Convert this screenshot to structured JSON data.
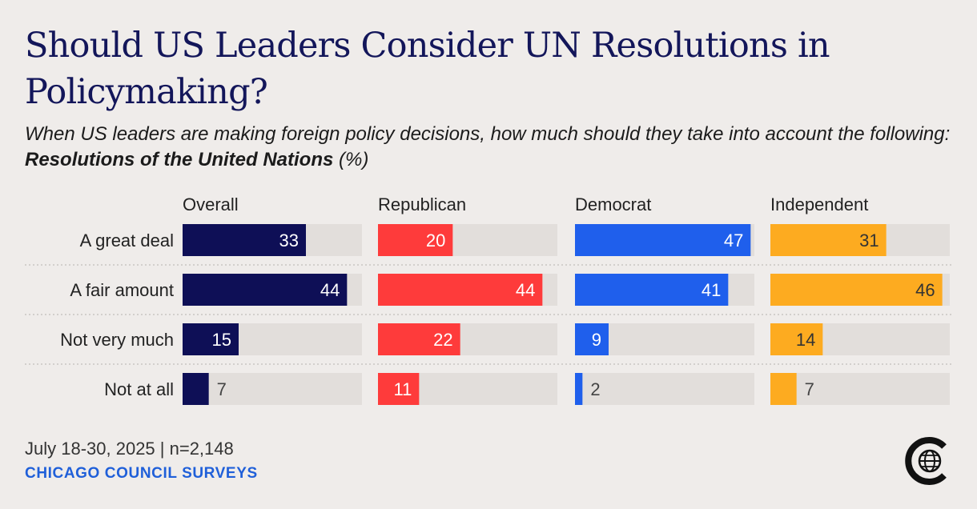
{
  "header": {
    "title": "Should US Leaders Consider UN Resolutions in Policymaking?",
    "subtitle_lead": "When US leaders are making foreign policy decisions, how much should they take into account the following: ",
    "subtitle_bold": "Resolutions of the United Nations",
    "subtitle_tail": " (%)"
  },
  "footer": {
    "date_n": "July 18-30, 2025 | n=2,148",
    "source": "CHICAGO COUNCIL SURVEYS",
    "logo_icon": "chicago-council-globe-logo-icon"
  },
  "chart_data": {
    "type": "bar",
    "orientation": "horizontal",
    "xlim": [
      0,
      100
    ],
    "grid": false,
    "categories": [
      "A great deal",
      "A fair amount",
      "Not very much",
      "Not at all"
    ],
    "series": [
      {
        "name": "Overall",
        "color": "#0e0f56",
        "values": [
          33,
          44,
          15,
          7
        ]
      },
      {
        "name": "Republican",
        "color": "#fe3b3b",
        "values": [
          20,
          44,
          22,
          11
        ]
      },
      {
        "name": "Democrat",
        "color": "#1f5fec",
        "values": [
          47,
          41,
          9,
          2
        ]
      },
      {
        "name": "Independent",
        "color": "#fdab20",
        "values": [
          31,
          46,
          14,
          7
        ]
      }
    ],
    "track_color": "#e2dedb",
    "label_colors": {
      "inside_dark_bar": "#ffffff",
      "inside_yellow_bar": "#333333",
      "outside": "#444444"
    }
  }
}
